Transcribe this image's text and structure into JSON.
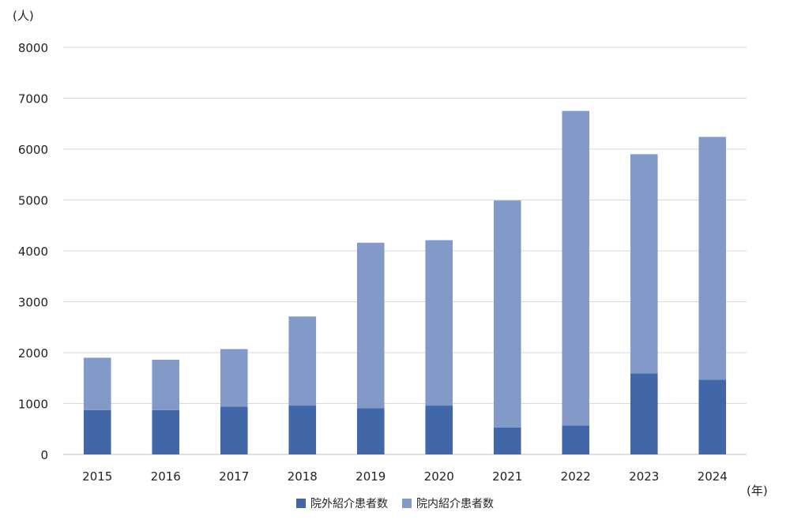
{
  "chart_data": {
    "type": "bar",
    "stacked": true,
    "categories": [
      "2015",
      "2016",
      "2017",
      "2018",
      "2019",
      "2020",
      "2021",
      "2022",
      "2023",
      "2024"
    ],
    "series": [
      {
        "name": "院外紹介患者数",
        "color": "#4267A8",
        "values": [
          870,
          870,
          940,
          960,
          910,
          960,
          530,
          570,
          1590,
          1470
        ]
      },
      {
        "name": "院内紹介患者数",
        "color": "#8399C8",
        "values": [
          1030,
          990,
          1130,
          1750,
          3250,
          3250,
          4460,
          6180,
          4310,
          4770
        ]
      }
    ],
    "ylabel": "(人)",
    "xlabel": "(年)",
    "ylim": [
      0,
      8000
    ],
    "yticks": [
      "0",
      "1000",
      "2000",
      "3000",
      "4000",
      "5000",
      "6000",
      "7000",
      "8000"
    ],
    "grid": true,
    "legend_position": "bottom",
    "gridline_color": "#D9D9D9"
  }
}
